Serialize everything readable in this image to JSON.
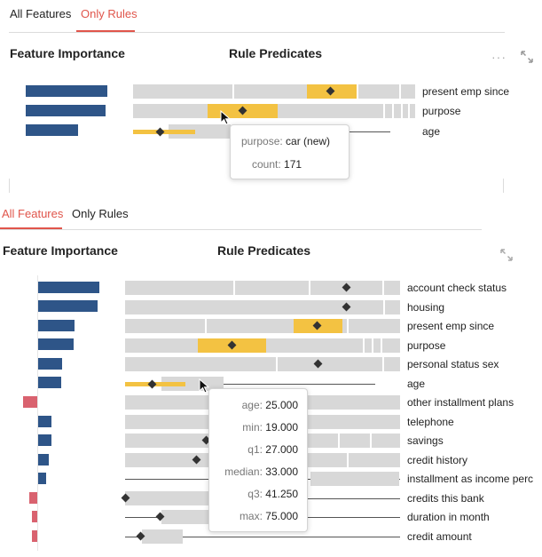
{
  "top": {
    "tabs": [
      {
        "label": "All Features"
      },
      {
        "label": "Only Rules"
      }
    ],
    "headings": {
      "importance": "Feature Importance",
      "predicates": "Rule Predicates"
    },
    "features": [
      {
        "label": "present emp since",
        "importance": 0.95,
        "impColor": "#2e5588"
      },
      {
        "label": "purpose",
        "importance": 0.92,
        "impColor": "#2e5588"
      },
      {
        "label": "age",
        "importance": 0.62,
        "impColor": "#2e5588"
      }
    ],
    "tooltip": {
      "rows": [
        {
          "key": "purpose:",
          "value": "car (new)"
        },
        {
          "key": "count:",
          "value": "171"
        }
      ]
    }
  },
  "bottom": {
    "tabs": [
      {
        "label": "All Features"
      },
      {
        "label": "Only Rules"
      }
    ],
    "headings": {
      "importance": "Feature Importance",
      "predicates": "Rule Predicates"
    },
    "features": [
      {
        "label": "account check status",
        "importance": 0.95,
        "direction": "positive"
      },
      {
        "label": "housing",
        "importance": 0.92,
        "direction": "positive"
      },
      {
        "label": "present emp since",
        "importance": 0.57,
        "direction": "positive"
      },
      {
        "label": "purpose",
        "importance": 0.55,
        "direction": "positive"
      },
      {
        "label": "personal status sex",
        "importance": 0.38,
        "direction": "positive"
      },
      {
        "label": "age",
        "importance": 0.37,
        "direction": "positive"
      },
      {
        "label": "other installment plans",
        "importance": 0.22,
        "direction": "negative"
      },
      {
        "label": "telephone",
        "importance": 0.22,
        "direction": "positive"
      },
      {
        "label": "savings",
        "importance": 0.22,
        "direction": "positive"
      },
      {
        "label": "credit history",
        "importance": 0.18,
        "direction": "positive"
      },
      {
        "label": "installment as income perc",
        "importance": 0.14,
        "direction": "positive"
      },
      {
        "label": "credits this bank",
        "importance": 0.12,
        "direction": "negative"
      },
      {
        "label": "duration in month",
        "importance": 0.08,
        "direction": "negative"
      },
      {
        "label": "credit amount",
        "importance": 0.08,
        "direction": "negative"
      }
    ],
    "tooltip": {
      "rows": [
        {
          "key": "age:",
          "value": "25.000"
        },
        {
          "key": "min:",
          "value": "19.000"
        },
        {
          "key": "q1:",
          "value": "27.000"
        },
        {
          "key": "median:",
          "value": "33.000"
        },
        {
          "key": "q3:",
          "value": "41.250"
        },
        {
          "key": "max:",
          "value": "75.000"
        }
      ]
    }
  },
  "colors": {
    "accent": "#e0554b",
    "positive": "#2e5588",
    "negative": "#d9626f",
    "highlight": "#f3c242",
    "track": "#d8d8d8"
  },
  "icons": {
    "more": "more-icon",
    "expand": "expand-icon"
  }
}
